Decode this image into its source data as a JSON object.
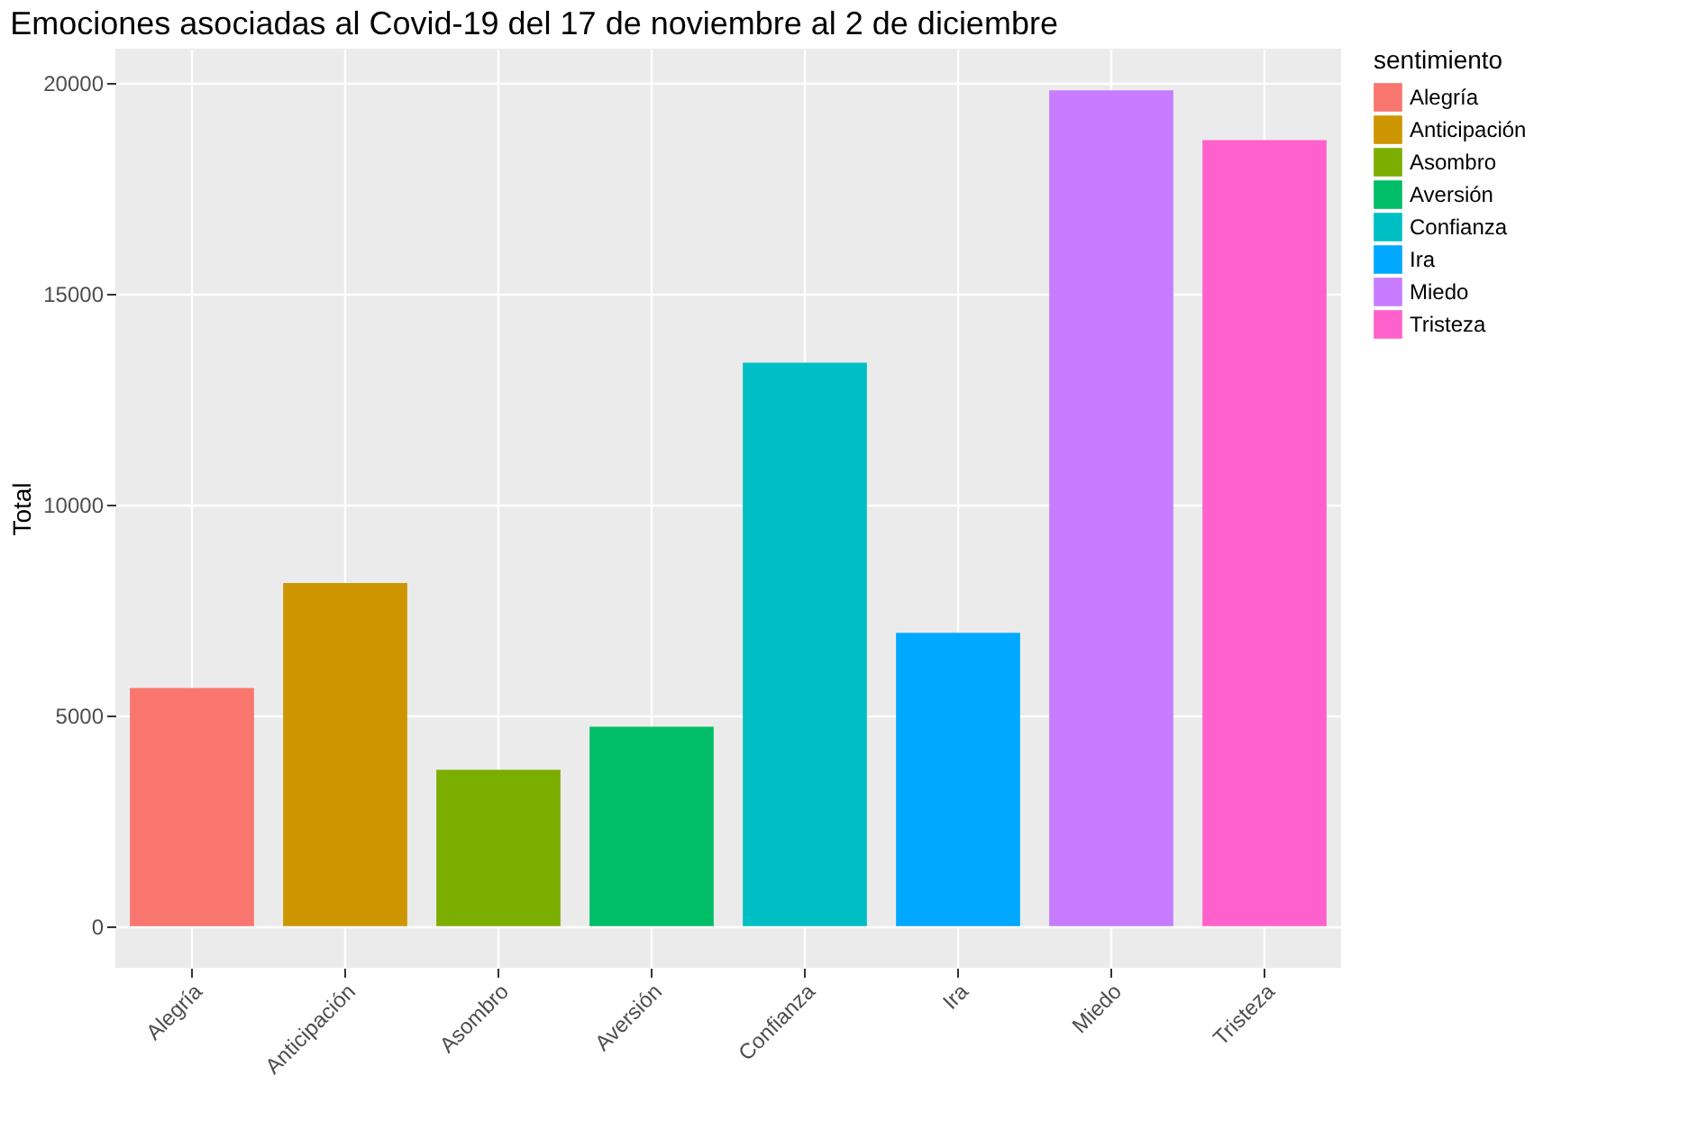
{
  "chart_data": {
    "type": "bar",
    "title": "Emociones asociadas al Covid-19 del 17 de noviembre al 2 de diciembre",
    "ylabel": "Total",
    "legend_title": "sentimiento",
    "categories": [
      "Alegría",
      "Anticipación",
      "Asombro",
      "Aversión",
      "Confianza",
      "Ira",
      "Miedo",
      "Tristeza"
    ],
    "series": [
      {
        "name": "Alegría",
        "color": "#f8766d",
        "values": [
          5650,
          null,
          null,
          null,
          null,
          null,
          null,
          null
        ]
      },
      {
        "name": "Anticipación",
        "color": "#cd9600",
        "values": [
          null,
          8140,
          null,
          null,
          null,
          null,
          null,
          null
        ]
      },
      {
        "name": "Asombro",
        "color": "#7cae00",
        "values": [
          null,
          null,
          3710,
          null,
          null,
          null,
          null,
          null
        ]
      },
      {
        "name": "Aversión",
        "color": "#00be67",
        "values": [
          null,
          null,
          null,
          4730,
          null,
          null,
          null,
          null
        ]
      },
      {
        "name": "Confianza",
        "color": "#00bfc4",
        "values": [
          null,
          null,
          null,
          null,
          13370,
          null,
          null,
          null
        ]
      },
      {
        "name": "Ira",
        "color": "#00a9ff",
        "values": [
          null,
          null,
          null,
          null,
          null,
          6960,
          null,
          null
        ]
      },
      {
        "name": "Miedo",
        "color": "#c77cff",
        "values": [
          null,
          null,
          null,
          null,
          null,
          null,
          19830,
          null
        ]
      },
      {
        "name": "Tristeza",
        "color": "#ff61cc",
        "values": [
          null,
          null,
          null,
          null,
          null,
          null,
          null,
          18650
        ]
      }
    ],
    "ylim": [
      -990,
      20820
    ],
    "yticks": [
      0,
      5000,
      10000,
      15000,
      20000
    ],
    "grid": true,
    "legend": "right"
  }
}
